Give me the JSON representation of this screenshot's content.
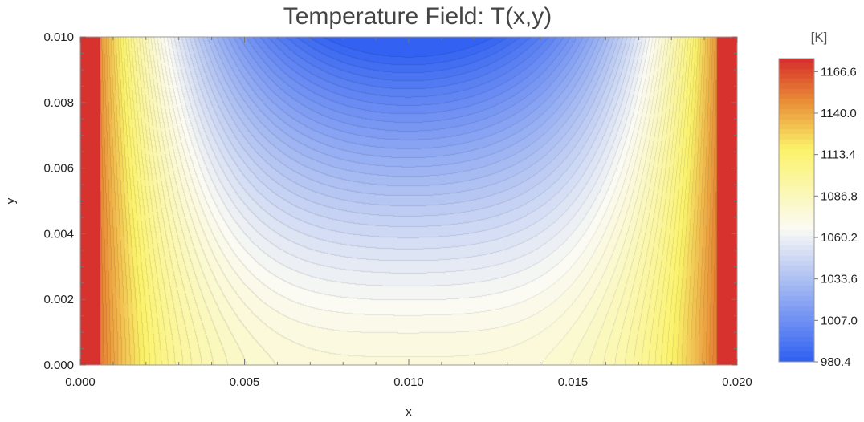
{
  "chart_data": {
    "type": "heatmap",
    "title": "Temperature Field: T(x,y)",
    "xlabel": "x",
    "ylabel": "y",
    "xlim": [
      0.0,
      0.02
    ],
    "ylim": [
      0.0,
      0.01
    ],
    "x_ticks": [
      "0.000",
      "0.005",
      "0.010",
      "0.015",
      "0.020"
    ],
    "x_tick_values": [
      0.0,
      0.005,
      0.01,
      0.015,
      0.02
    ],
    "y_ticks": [
      "0.000",
      "0.002",
      "0.004",
      "0.006",
      "0.008",
      "0.010"
    ],
    "y_tick_values": [
      0.0,
      0.002,
      0.004,
      0.006,
      0.008,
      0.01
    ],
    "legend": {
      "unit": "[K]",
      "position": "right",
      "min": 980.4,
      "max": 1175.0,
      "tick_labels": [
        "1166.6",
        "1140.0",
        "1113.4",
        "1086.8",
        "1060.2",
        "1033.6",
        "1007.0",
        "980.4"
      ],
      "tick_values": [
        1166.6,
        1140.0,
        1113.4,
        1086.8,
        1060.2,
        1033.6,
        1007.0,
        980.4
      ]
    },
    "contour_levels": 60,
    "grid": false,
    "colors": {
      "low": "#2f5ff2",
      "mid": "#fbfbf4",
      "warm": "#fbf36a",
      "orange": "#e98c36",
      "high": "#d62c2c"
    }
  }
}
